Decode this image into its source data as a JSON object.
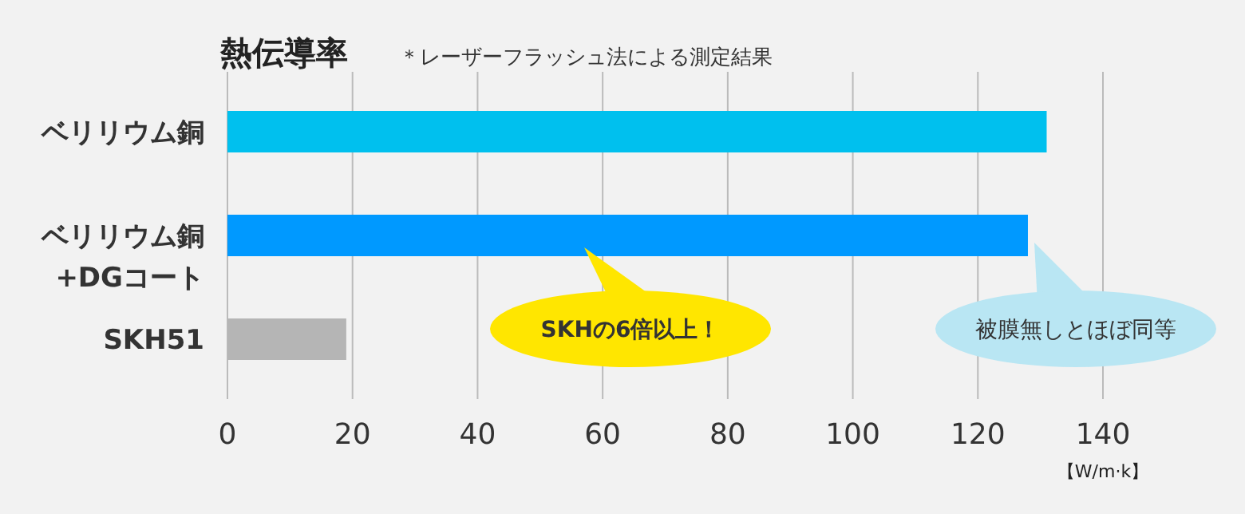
{
  "chart_data": {
    "type": "bar",
    "orientation": "horizontal",
    "title": "熱伝導率",
    "subtitle": "＊レーザーフラッシュ法による測定結果",
    "xlabel": "【W/m·k】",
    "categories": [
      "ベリリウム銅",
      "ベリリウム銅\n+DGコート",
      "SKH51"
    ],
    "values": [
      131,
      128,
      19
    ],
    "colors": [
      "#00c0ee",
      "#0099ff",
      "#b5b5b5"
    ],
    "xlim": [
      0,
      140
    ],
    "xticks": [
      0,
      20,
      40,
      60,
      80,
      100,
      120,
      140
    ],
    "grid": "x",
    "annotations": [
      "SKHの6倍以上！",
      "被膜無しとほぼ同等"
    ]
  }
}
